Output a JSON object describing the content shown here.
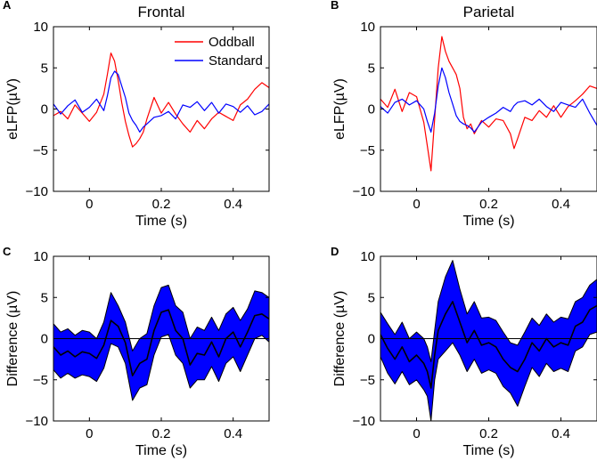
{
  "chart_data": [
    {
      "panel": "A",
      "type": "line",
      "title": "Frontal",
      "xlabel": "Time (s)",
      "ylabel": "eLFP(µV)",
      "xlim": [
        -0.1,
        0.5
      ],
      "ylim": [
        -10,
        10
      ],
      "xticks": [
        0,
        0.2,
        0.4
      ],
      "xtick_labels": [
        "0",
        "0.2",
        "0.4"
      ],
      "yticks": [
        -10,
        -5,
        0,
        5,
        10
      ],
      "ytick_labels": [
        "−10",
        "−5",
        "0",
        "5",
        "10"
      ],
      "legend": "top-right",
      "x": [
        -0.1,
        -0.08,
        -0.06,
        -0.04,
        -0.02,
        0,
        0.02,
        0.04,
        0.05,
        0.06,
        0.07,
        0.08,
        0.09,
        0.1,
        0.11,
        0.12,
        0.13,
        0.14,
        0.15,
        0.16,
        0.18,
        0.2,
        0.22,
        0.24,
        0.26,
        0.28,
        0.3,
        0.32,
        0.34,
        0.36,
        0.38,
        0.4,
        0.42,
        0.44,
        0.46,
        0.48,
        0.5
      ],
      "series": [
        {
          "name": "Oddball",
          "color": "#ff0000",
          "values": [
            -0.8,
            -0.3,
            -1.2,
            0.5,
            -0.5,
            -1.5,
            -0.4,
            1.8,
            4.2,
            6.8,
            5.8,
            3.5,
            0.8,
            -1.5,
            -3.2,
            -4.6,
            -4.2,
            -3.6,
            -2.8,
            -1.2,
            1.4,
            -0.5,
            0.8,
            -0.6,
            -1.8,
            -2.8,
            -1.4,
            -2.4,
            -1.2,
            -0.4,
            -0.9,
            -1.4,
            0.5,
            1.2,
            2.4,
            3.2,
            2.6
          ]
        },
        {
          "name": "Standard",
          "color": "#0000ff",
          "values": [
            0.6,
            -0.6,
            0.4,
            1.1,
            -0.4,
            0.2,
            1.2,
            -0.2,
            1.6,
            3.8,
            4.6,
            4.2,
            2.8,
            1.4,
            -0.5,
            -1.4,
            -2.0,
            -2.8,
            -2.2,
            -1.8,
            -1.0,
            -0.8,
            -0.3,
            -1.2,
            0.5,
            0.2,
            0.9,
            -0.2,
            0.8,
            -0.5,
            0.6,
            0.3,
            -0.4,
            0.4,
            -0.7,
            -0.3,
            0.6
          ]
        }
      ]
    },
    {
      "panel": "B",
      "type": "line",
      "title": "Parietal",
      "xlabel": "Time (s)",
      "ylabel": "eLFP(µV)",
      "xlim": [
        -0.1,
        0.5
      ],
      "ylim": [
        -10,
        10
      ],
      "xticks": [
        0,
        0.2,
        0.4
      ],
      "xtick_labels": [
        "0",
        "0.2",
        "0.4"
      ],
      "yticks": [
        -10,
        -5,
        0,
        5,
        10
      ],
      "ytick_labels": [
        "−10",
        "−5",
        "0",
        "5",
        "10"
      ],
      "legend": "none",
      "x": [
        -0.1,
        -0.08,
        -0.06,
        -0.04,
        -0.02,
        0,
        0.02,
        0.03,
        0.04,
        0.05,
        0.06,
        0.07,
        0.08,
        0.09,
        0.1,
        0.11,
        0.12,
        0.13,
        0.14,
        0.15,
        0.16,
        0.18,
        0.2,
        0.22,
        0.24,
        0.26,
        0.27,
        0.28,
        0.3,
        0.32,
        0.34,
        0.36,
        0.38,
        0.4,
        0.42,
        0.44,
        0.46,
        0.48,
        0.5
      ],
      "series": [
        {
          "name": "Oddball",
          "color": "#ff0000",
          "values": [
            1.2,
            0.2,
            2.4,
            -0.3,
            2.0,
            1.5,
            -1.6,
            -4.5,
            -7.5,
            -1.2,
            5.0,
            8.8,
            7.0,
            5.8,
            5.0,
            4.2,
            2.5,
            -1.0,
            -2.4,
            -1.8,
            -3.0,
            -1.4,
            -2.2,
            -1.2,
            -1.4,
            -3.0,
            -4.8,
            -3.6,
            -1.0,
            -1.4,
            -0.2,
            -1.0,
            0.4,
            -1.0,
            0.3,
            1.0,
            1.8,
            2.8,
            2.5
          ]
        },
        {
          "name": "Standard",
          "color": "#0000ff",
          "values": [
            0.3,
            -0.5,
            0.8,
            1.2,
            0.5,
            1.0,
            0.0,
            -1.5,
            -2.8,
            -0.5,
            2.8,
            5.0,
            3.8,
            2.0,
            0.6,
            -0.8,
            -1.5,
            -1.8,
            -2.0,
            -2.3,
            -2.8,
            -1.6,
            -1.0,
            -0.5,
            0.2,
            -0.3,
            0.4,
            0.8,
            1.0,
            0.5,
            1.2,
            0.3,
            -0.3,
            0.8,
            0.5,
            0.2,
            1.2,
            -0.5,
            -2.0
          ]
        }
      ]
    },
    {
      "panel": "C",
      "type": "area",
      "xlabel": "Time (s)",
      "ylabel": "Difference (µV)",
      "xlim": [
        -0.1,
        0.5
      ],
      "ylim": [
        -10,
        10
      ],
      "xticks": [
        0,
        0.2,
        0.4
      ],
      "xtick_labels": [
        "0",
        "0.2",
        "0.4"
      ],
      "yticks": [
        -10,
        -5,
        0,
        5,
        10
      ],
      "ytick_labels": [
        "−10",
        "−5",
        "0",
        "5",
        "10"
      ],
      "zero_line": true,
      "band_color": "#0000ff",
      "mean_color": "#000000",
      "x": [
        -0.1,
        -0.08,
        -0.06,
        -0.04,
        -0.02,
        0,
        0.02,
        0.04,
        0.06,
        0.08,
        0.1,
        0.12,
        0.14,
        0.16,
        0.18,
        0.2,
        0.22,
        0.24,
        0.26,
        0.28,
        0.3,
        0.32,
        0.34,
        0.36,
        0.38,
        0.4,
        0.42,
        0.44,
        0.46,
        0.48,
        0.5
      ],
      "series": [
        {
          "name": "mean",
          "values": [
            -1.0,
            -2.0,
            -1.5,
            -2.2,
            -1.6,
            -1.8,
            -2.4,
            -0.8,
            2.2,
            1.5,
            -0.5,
            -4.5,
            -3.0,
            -2.5,
            1.0,
            3.2,
            3.5,
            1.0,
            0.0,
            -3.2,
            -1.8,
            -2.0,
            -0.4,
            -2.2,
            0.0,
            0.8,
            -1.0,
            0.8,
            2.8,
            3.0,
            2.4
          ]
        },
        {
          "name": "upper",
          "values": [
            1.8,
            0.8,
            1.2,
            0.4,
            1.0,
            0.8,
            0.0,
            2.0,
            5.6,
            4.0,
            2.0,
            -1.5,
            0.0,
            0.6,
            4.0,
            6.2,
            6.5,
            4.0,
            3.2,
            0.0,
            1.4,
            1.0,
            2.6,
            1.0,
            3.0,
            3.8,
            2.2,
            3.6,
            5.8,
            5.6,
            5.0
          ]
        },
        {
          "name": "lower",
          "values": [
            -3.8,
            -4.8,
            -4.2,
            -4.8,
            -4.4,
            -4.6,
            -5.2,
            -3.6,
            -0.6,
            -1.0,
            -3.0,
            -7.5,
            -6.0,
            -5.6,
            -2.0,
            0.2,
            0.5,
            -2.0,
            -3.0,
            -6.0,
            -5.0,
            -5.0,
            -3.4,
            -5.2,
            -3.0,
            -2.2,
            -4.0,
            -2.0,
            0.0,
            0.4,
            -0.4
          ]
        }
      ]
    },
    {
      "panel": "D",
      "type": "area",
      "xlabel": "Time (s)",
      "ylabel": "Difference (µV)",
      "xlim": [
        -0.1,
        0.5
      ],
      "ylim": [
        -10,
        10
      ],
      "xticks": [
        0,
        0.2,
        0.4
      ],
      "xtick_labels": [
        "0",
        "0.2",
        "0.4"
      ],
      "yticks": [
        -10,
        -5,
        0,
        5,
        10
      ],
      "ytick_labels": [
        "−10",
        "−5",
        "0",
        "5",
        "10"
      ],
      "zero_line": true,
      "band_color": "#0000ff",
      "mean_color": "#000000",
      "x": [
        -0.1,
        -0.08,
        -0.06,
        -0.04,
        -0.02,
        0,
        0.02,
        0.03,
        0.04,
        0.05,
        0.06,
        0.08,
        0.1,
        0.12,
        0.14,
        0.16,
        0.18,
        0.2,
        0.22,
        0.24,
        0.26,
        0.28,
        0.3,
        0.32,
        0.34,
        0.36,
        0.38,
        0.4,
        0.42,
        0.44,
        0.46,
        0.48,
        0.5
      ],
      "series": [
        {
          "name": "mean",
          "values": [
            0.5,
            -1.2,
            -2.5,
            -1.0,
            -2.8,
            -2.0,
            -3.0,
            -4.0,
            -6.0,
            -2.0,
            1.0,
            3.0,
            4.5,
            2.0,
            -0.5,
            1.0,
            -0.8,
            -0.5,
            -1.0,
            -2.5,
            -3.5,
            -4.0,
            -2.5,
            -0.5,
            -1.5,
            0.0,
            -1.0,
            -0.5,
            -0.8,
            1.5,
            2.0,
            3.5,
            4.0
          ]
        },
        {
          "name": "upper",
          "values": [
            3.2,
            1.8,
            0.5,
            2.0,
            0.0,
            0.8,
            0.0,
            -1.0,
            -2.8,
            1.0,
            4.5,
            7.5,
            9.5,
            6.0,
            3.0,
            4.5,
            2.5,
            2.6,
            2.2,
            0.8,
            -0.5,
            -0.8,
            0.8,
            2.5,
            1.6,
            3.0,
            2.0,
            2.6,
            2.4,
            4.5,
            5.0,
            6.5,
            7.2
          ]
        },
        {
          "name": "lower",
          "values": [
            -2.2,
            -4.2,
            -5.5,
            -4.0,
            -5.6,
            -5.0,
            -6.2,
            -7.0,
            -10.0,
            -5.0,
            -2.5,
            -1.5,
            -0.5,
            -2.0,
            -4.0,
            -2.5,
            -4.2,
            -3.8,
            -4.2,
            -5.8,
            -6.6,
            -8.2,
            -5.8,
            -3.5,
            -4.6,
            -3.0,
            -4.0,
            -3.6,
            -4.0,
            -1.5,
            -1.0,
            0.5,
            0.8
          ]
        }
      ]
    }
  ]
}
